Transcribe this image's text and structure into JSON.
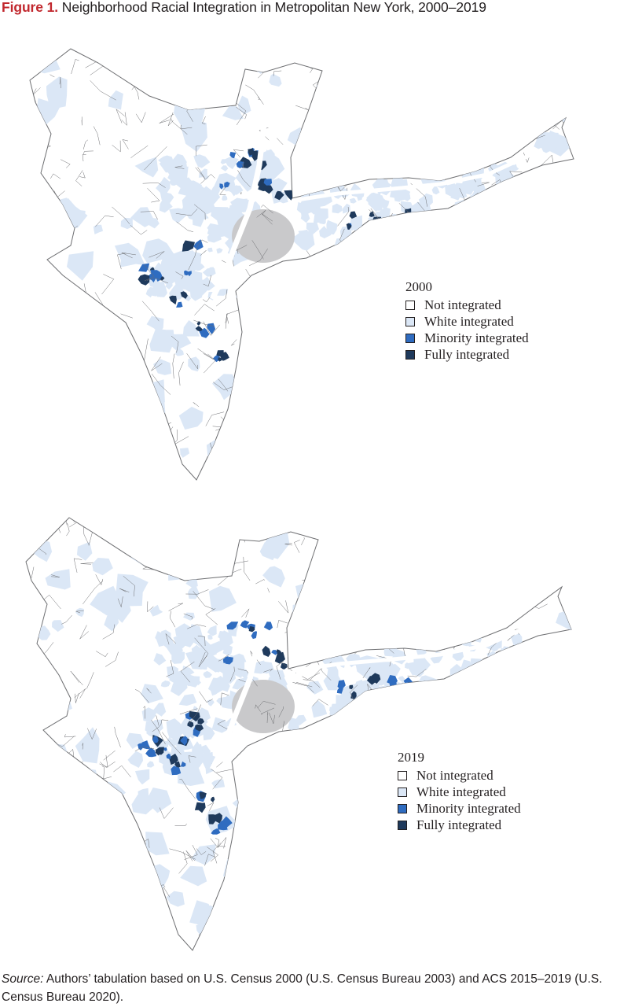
{
  "figure": {
    "label": "Figure 1.",
    "title": "Neighborhood Racial Integration in Metropolitan New York, 2000–2019"
  },
  "colors": {
    "not_integrated": "#ffffff",
    "white_integrated": "#dbe7f6",
    "minority_integrated": "#2f6cc0",
    "fully_integrated": "#1f3a5c",
    "tract_border": "#6d6e71",
    "title_label": "#c1272d"
  },
  "maps": [
    {
      "year": "2000",
      "legend": [
        {
          "category": "not_integrated",
          "label": "Not integrated"
        },
        {
          "category": "white_integrated",
          "label": "White integrated"
        },
        {
          "category": "minority_integrated",
          "label": "Minority integrated"
        },
        {
          "category": "fully_integrated",
          "label": "Fully integrated"
        }
      ]
    },
    {
      "year": "2019",
      "legend": [
        {
          "category": "not_integrated",
          "label": "Not integrated"
        },
        {
          "category": "white_integrated",
          "label": "White integrated"
        },
        {
          "category": "minority_integrated",
          "label": "Minority integrated"
        },
        {
          "category": "fully_integrated",
          "label": "Fully integrated"
        }
      ]
    }
  ],
  "source": {
    "label": "Source:",
    "text": " Authors’ tabulation based on U.S. Census 2000 (U.S. Census Bureau 2003) and ACS 2015–2019 (U.S. Census Bureau 2020)."
  }
}
